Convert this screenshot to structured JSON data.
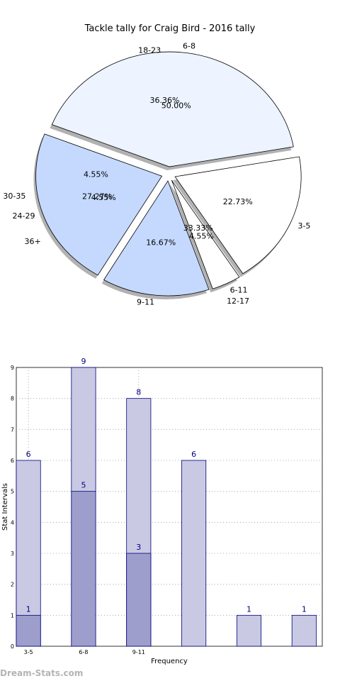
{
  "watermark": "Dream-Stats.com",
  "chart_data": [
    {
      "type": "pie",
      "title": "Tackle tally for Craig Bird - 2016 tally",
      "shadow": true,
      "exploded": true,
      "rings": [
        {
          "name": "outer",
          "slices": [
            {
              "label": "3-5",
              "value": 22.73,
              "pct_label": "22.73%",
              "color": "#ffffff"
            },
            {
              "label": "6-11",
              "value": 4.55,
              "pct_label": "4.55%",
              "color": "#ffffff"
            },
            {
              "label": "9-11",
              "value": 16.67,
              "pct_label": "16.67%",
              "color": "#c5d9ff"
            },
            {
              "label": "24-29",
              "value": 27.27,
              "pct_label": "27.27%",
              "color": "#c5d9ff"
            },
            {
              "label": "6-8",
              "value": 50.0,
              "pct_label": "50.00%",
              "color": "#edf3ff"
            }
          ]
        },
        {
          "name": "inner",
          "slices": [
            {
              "label": "12-17",
              "value": 33.33,
              "pct_label": "33.33%",
              "color": "#ffffff"
            },
            {
              "label": "36+",
              "value": 4.55,
              "pct_label": "4.55%",
              "color": "#ffffff"
            },
            {
              "label": "30-35",
              "value": 4.55,
              "pct_label": "4.55%",
              "color": "#c5d9ff"
            },
            {
              "label": "18-23",
              "value": 36.36,
              "pct_label": "36.36%",
              "color": "#edf3ff"
            }
          ]
        }
      ]
    },
    {
      "type": "bar",
      "stacked_overlay": true,
      "xlabel": "Frequency",
      "ylabel": "Stat Intervals",
      "ylim": [
        0,
        9
      ],
      "yticks": [
        "0",
        "1",
        "2",
        "3",
        "4",
        "5",
        "6",
        "7",
        "8",
        "9"
      ],
      "categories": [
        "3-5",
        "6-8",
        "9-11",
        "",
        "",
        ""
      ],
      "grid": true,
      "series": [
        {
          "values": [
            6,
            9,
            8,
            6,
            1,
            1
          ],
          "color": "#c9c9e3",
          "labels": [
            "6",
            "9",
            "8",
            "6",
            "1",
            "1"
          ]
        },
        {
          "values": [
            1,
            5,
            3,
            null,
            null,
            null
          ],
          "color": "#9e9ecc",
          "labels": [
            "1",
            "5",
            "3",
            "",
            "",
            ""
          ]
        }
      ],
      "edge_color": "#000080",
      "label_color": "#000080"
    }
  ]
}
